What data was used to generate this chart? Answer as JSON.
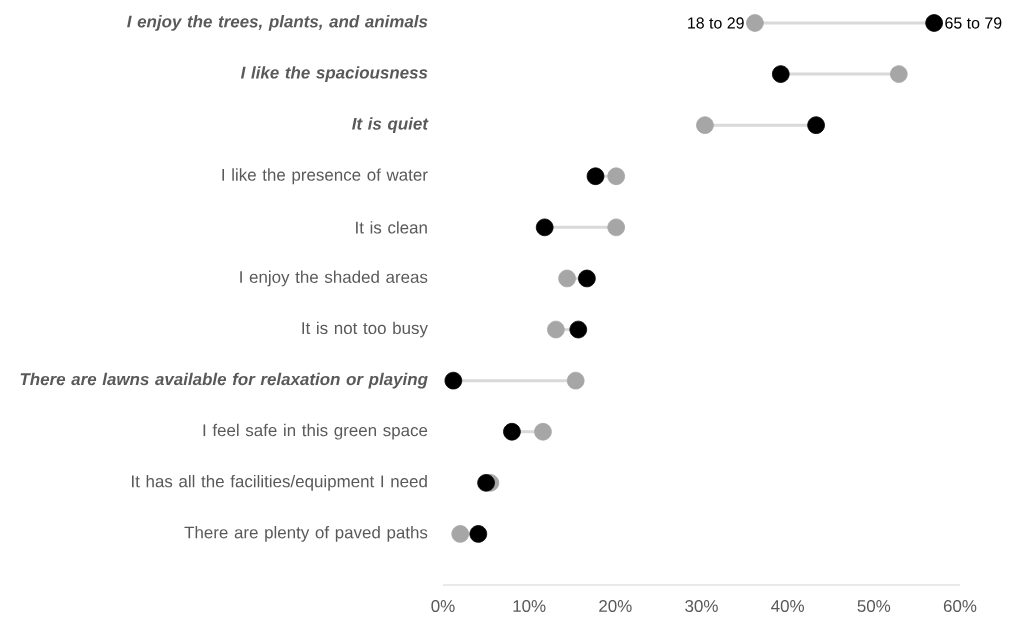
{
  "chart_data": {
    "type": "scatter",
    "orientation": "horizontal",
    "marker": "circle",
    "grid": false,
    "legend": "top right",
    "categories": [
      "I enjoy the trees, plants, and animals",
      "I like the spaciousness",
      "It is quiet",
      "I like the presence of water",
      "It is clean",
      "I enjoy the shaded areas",
      "It is not too busy",
      "There are lawns available for relaxation or playing",
      "I feel safe in this green space",
      "It has all the facilities/equipment I need",
      "There are plenty of paved paths"
    ],
    "series": [
      {
        "name": "18 to 29",
        "color": "#a6a6a6",
        "values": [
          36.2,
          52.9,
          30.4,
          20.1,
          20.1,
          14.4,
          13.1,
          15.4,
          11.6,
          5.5,
          2.0
        ]
      },
      {
        "name": "65 to 79",
        "color": "#000000",
        "values": [
          57.0,
          39.2,
          43.3,
          17.7,
          11.8,
          16.7,
          15.7,
          1.2,
          8.0,
          5.0,
          4.1
        ]
      }
    ],
    "xlim": [
      0,
      60
    ],
    "xticks": [
      {
        "value": 0,
        "label": "0%"
      },
      {
        "value": 10,
        "label": "10%"
      },
      {
        "value": 20,
        "label": "20%"
      },
      {
        "value": 30,
        "label": "30%"
      },
      {
        "value": 40,
        "label": "40%"
      },
      {
        "value": 50,
        "label": "50%"
      },
      {
        "value": 60,
        "label": "60%"
      }
    ]
  }
}
